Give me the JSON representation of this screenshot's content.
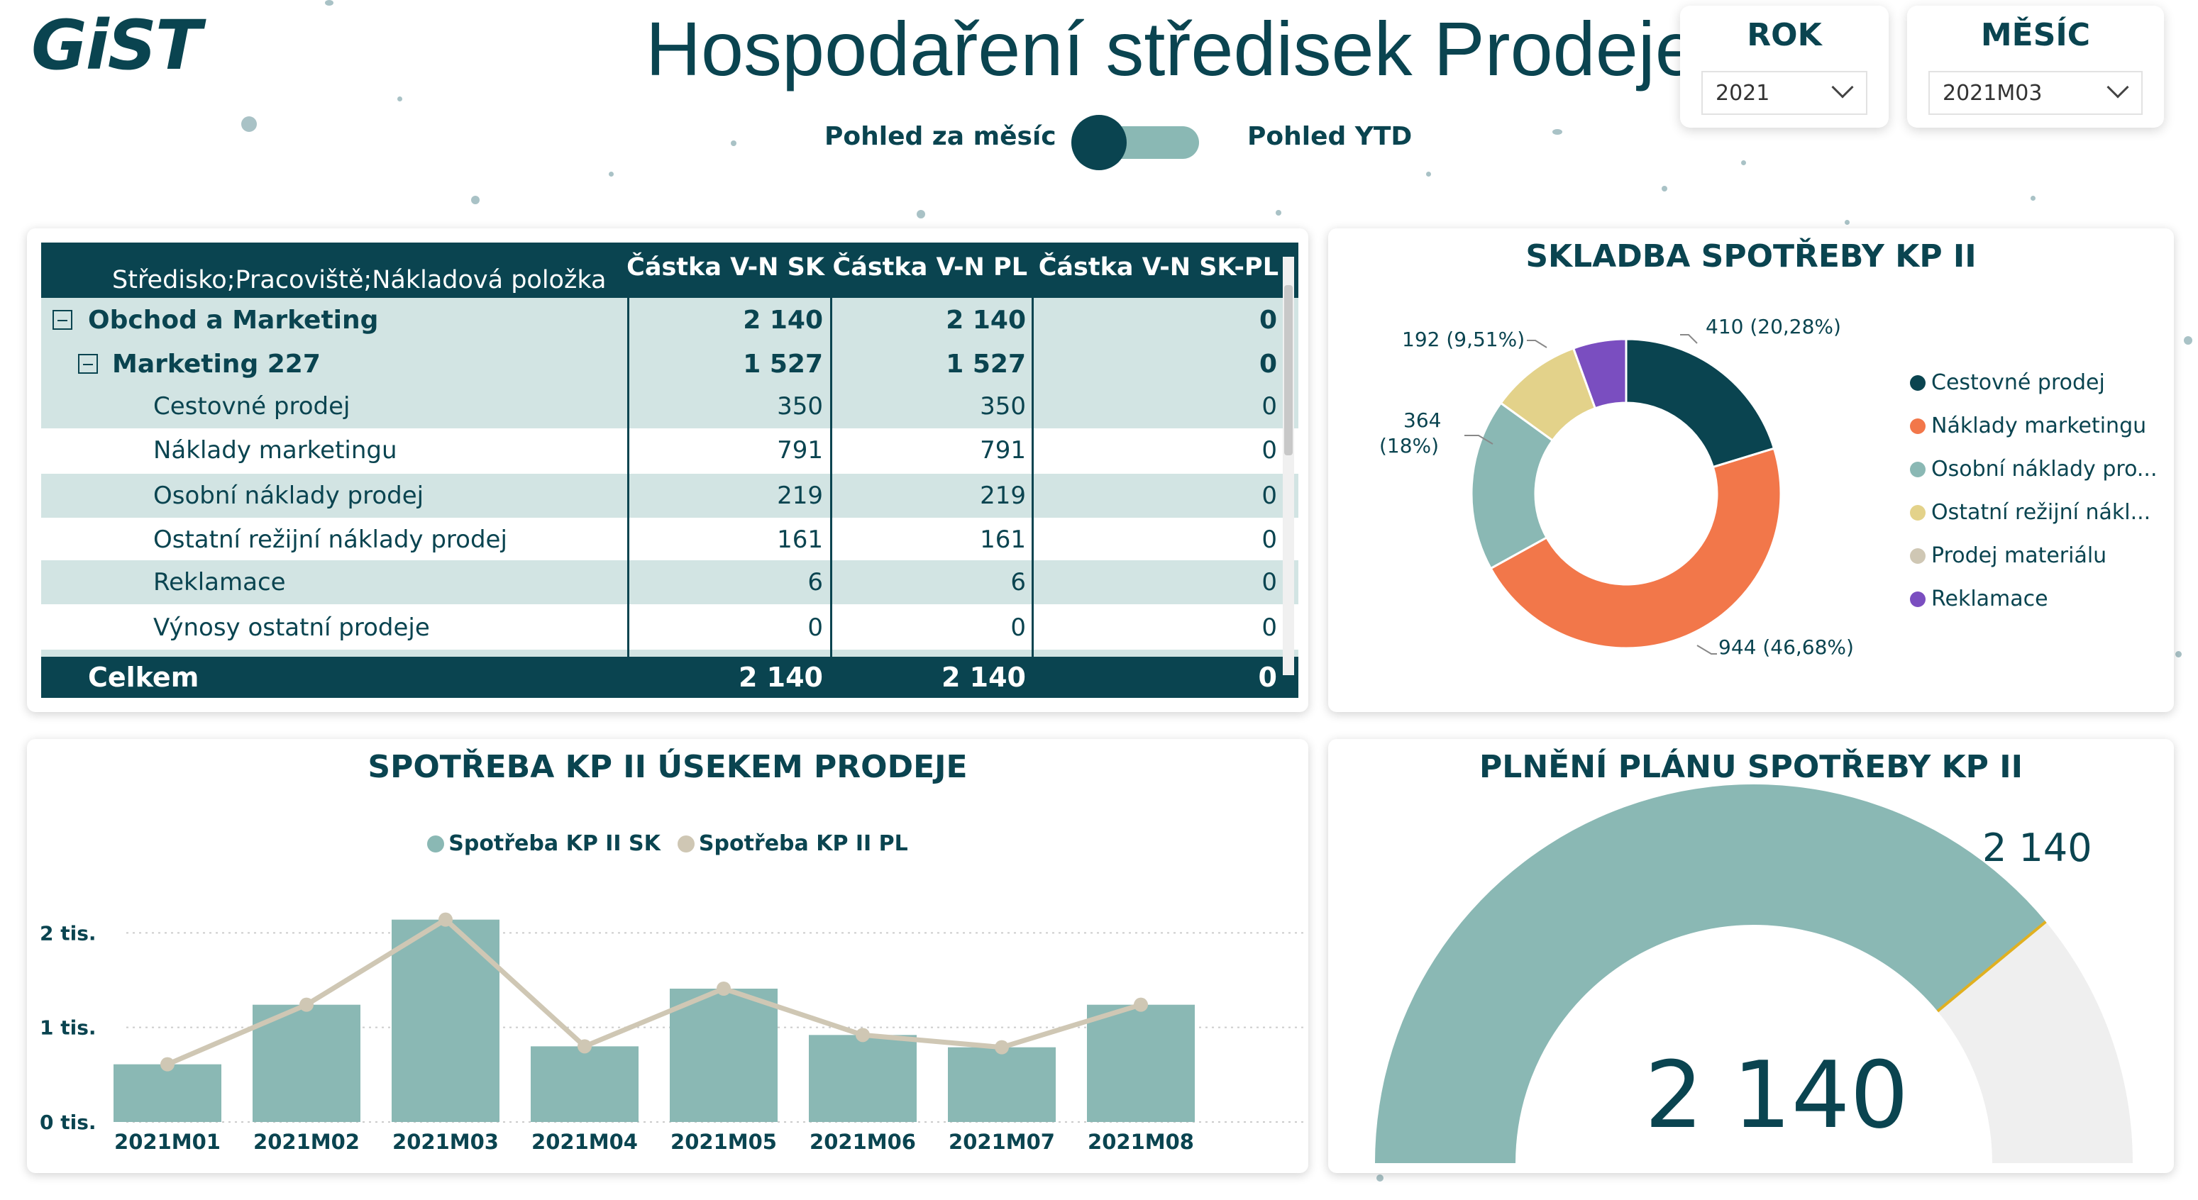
{
  "header": {
    "logo": "GiST",
    "title": "Hospodaření středisek Prodeje",
    "toggle": {
      "left_label": "Pohled za měsíc",
      "right_label": "Pohled YTD"
    }
  },
  "slicers": {
    "year": {
      "title": "ROK",
      "value": "2021"
    },
    "month": {
      "title": "MĚSÍC",
      "value": "2021M03"
    }
  },
  "matrix": {
    "headers": [
      "Středisko;Pracoviště;Nákladová položka",
      "Částka V-N SK",
      "Částka V-N PL",
      "Částka V-N SK-PL"
    ],
    "rows": [
      {
        "label": "Obchod a Marketing",
        "sk": "2 140",
        "pl": "2 140",
        "diff": "0",
        "level": 0,
        "bold": true,
        "expander": true
      },
      {
        "label": "Marketing 227",
        "sk": "1 527",
        "pl": "1 527",
        "diff": "0",
        "level": 1,
        "bold": true,
        "expander": true
      },
      {
        "label": "Cestovné prodej",
        "sk": "350",
        "pl": "350",
        "diff": "0",
        "level": 2,
        "bold": false,
        "expander": false
      },
      {
        "label": "Náklady marketingu",
        "sk": "791",
        "pl": "791",
        "diff": "0",
        "level": 2,
        "bold": false,
        "expander": false
      },
      {
        "label": "Osobní náklady prodej",
        "sk": "219",
        "pl": "219",
        "diff": "0",
        "level": 2,
        "bold": false,
        "expander": false
      },
      {
        "label": "Ostatní režijní náklady prodej",
        "sk": "161",
        "pl": "161",
        "diff": "0",
        "level": 2,
        "bold": false,
        "expander": false
      },
      {
        "label": "Reklamace",
        "sk": "6",
        "pl": "6",
        "diff": "0",
        "level": 2,
        "bold": false,
        "expander": false
      },
      {
        "label": "Výnosy ostatní prodeje",
        "sk": "0",
        "pl": "0",
        "diff": "0",
        "level": 2,
        "bold": false,
        "expander": false
      }
    ],
    "total": {
      "label": "Celkem",
      "sk": "2 140",
      "pl": "2 140",
      "diff": "0"
    }
  },
  "donut": {
    "title": "SKLADBA SPOTŘEBY KP II",
    "slices": [
      {
        "name": "Cestovné prodej",
        "value": 410,
        "pct": "20,28%",
        "color": "#0a4450",
        "label": "410 (20,28%)"
      },
      {
        "name": "Náklady marketingu",
        "value": 944,
        "pct": "46,68%",
        "color": "#f2774a",
        "label": "944 (46,68%)"
      },
      {
        "name": "Osobní náklady pro...",
        "value": 364,
        "pct": "18%",
        "color": "#8ab8b4",
        "label": "364 (18%)"
      },
      {
        "name": "Ostatní režijní nákl...",
        "value": 192,
        "pct": "9,51%",
        "color": "#e3d28a",
        "label": "192 (9,51%)"
      },
      {
        "name": "Prodej materiálu",
        "value": 0,
        "pct": "0%",
        "color": "#cfc7b4",
        "label": ""
      },
      {
        "name": "Reklamace",
        "value": 112,
        "pct": "5,53%",
        "color": "#7a4ec0",
        "label": ""
      }
    ],
    "label_364_line1": "364",
    "label_364_line2": "(18%)"
  },
  "chart_data": {
    "type": "bar",
    "title": "SPOTŘEBA KP II ÚSEKEM PRODEJE",
    "categories": [
      "2021M01",
      "2021M02",
      "2021M03",
      "2021M04",
      "2021M05",
      "2021M06",
      "2021M07",
      "2021M08"
    ],
    "series": [
      {
        "name": "Spotřeba KP II SK",
        "type": "bar",
        "color": "#8ab8b4",
        "values": [
          610,
          1240,
          2140,
          800,
          1410,
          920,
          790,
          1240
        ]
      },
      {
        "name": "Spotřeba KP II PL",
        "type": "line",
        "color": "#cfc7b4",
        "values": [
          610,
          1240,
          2140,
          800,
          1410,
          920,
          790,
          1240
        ]
      }
    ],
    "ylim": [
      0,
      2400
    ],
    "yticks": [
      {
        "value": 0,
        "label": "0 tis."
      },
      {
        "value": 1000,
        "label": "1 tis."
      },
      {
        "value": 2000,
        "label": "2 tis."
      }
    ]
  },
  "gauge": {
    "title": "PLNĚNÍ PLÁNU SPOTŘEBY KP II",
    "value": 2140,
    "value_label": "2 140",
    "target_label": "2 140",
    "fill_fraction": 0.78,
    "fill_color": "#8ab8b4",
    "rest_color": "#efefef",
    "target_color": "#e0b020"
  }
}
